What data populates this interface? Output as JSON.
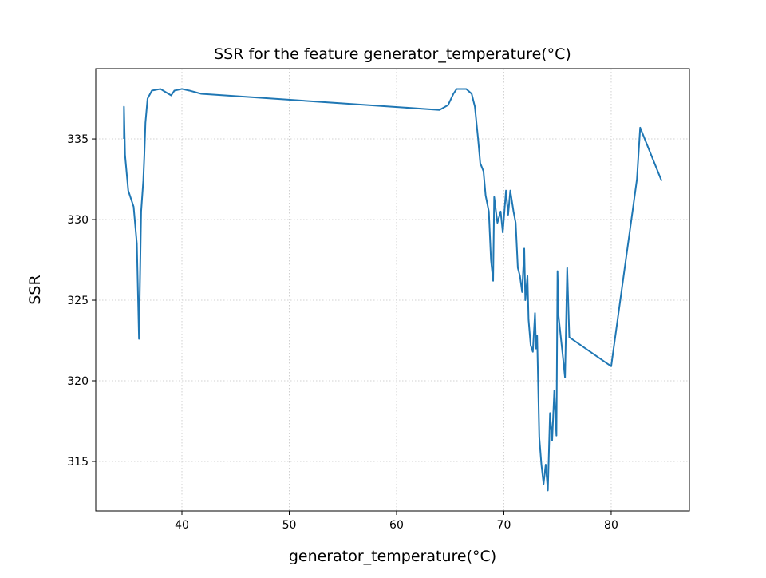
{
  "chart_data": {
    "type": "line",
    "title": "SSR for the feature generator_temperature(°C)",
    "x_label": "generator_temperature(°C)",
    "y_label": "SSR",
    "x": [
      34.6,
      34.6,
      34.7,
      35.0,
      35.5,
      35.8,
      36.0,
      36.2,
      36.4,
      36.5,
      36.6,
      36.8,
      37.2,
      38.0,
      38.5,
      39.0,
      39.3,
      40.0,
      40.7,
      41.8,
      64.0,
      64.8,
      65.3,
      65.6,
      66.5,
      67.0,
      67.3,
      67.6,
      67.8,
      68.1,
      68.3,
      68.6,
      68.8,
      69.0,
      69.1,
      69.4,
      69.7,
      69.9,
      70.2,
      70.4,
      70.6,
      70.9,
      71.1,
      71.3,
      71.5,
      71.7,
      71.9,
      72.0,
      72.2,
      72.3,
      72.5,
      72.7,
      72.9,
      73.0,
      73.1,
      73.3,
      73.5,
      73.7,
      73.9,
      74.1,
      74.3,
      74.5,
      74.7,
      74.9,
      75.0,
      75.1,
      75.5,
      75.7,
      75.9,
      76.1,
      80.0,
      82.4,
      82.7,
      84.7
    ],
    "series": [
      {
        "name": "SSR",
        "color": "#1f77b4",
        "values": [
          335.0,
          337.0,
          334.0,
          331.8,
          330.8,
          328.5,
          322.6,
          330.5,
          332.4,
          334.0,
          336.0,
          337.5,
          338.0,
          338.1,
          337.9,
          337.7,
          338.0,
          338.1,
          338.0,
          337.8,
          336.8,
          337.1,
          337.8,
          338.1,
          338.1,
          337.8,
          337.0,
          335.0,
          333.5,
          333.0,
          331.5,
          330.5,
          327.5,
          326.2,
          331.4,
          329.8,
          330.5,
          329.2,
          331.8,
          330.3,
          331.8,
          330.5,
          329.8,
          327.0,
          326.5,
          325.5,
          328.2,
          325.0,
          326.5,
          323.8,
          322.2,
          321.8,
          324.2,
          322.0,
          322.8,
          316.5,
          314.8,
          313.6,
          314.8,
          313.2,
          318.0,
          316.3,
          319.4,
          316.6,
          326.8,
          324.0,
          321.5,
          320.2,
          327.0,
          322.7,
          320.9,
          332.5,
          335.7,
          332.4
        ]
      }
    ],
    "xlim": [
      31.97,
      87.29
    ],
    "ylim": [
      311.93,
      339.36
    ],
    "xticks": [
      40,
      50,
      60,
      70,
      80
    ],
    "yticks": [
      315,
      320,
      325,
      330,
      335
    ],
    "grid": true
  }
}
